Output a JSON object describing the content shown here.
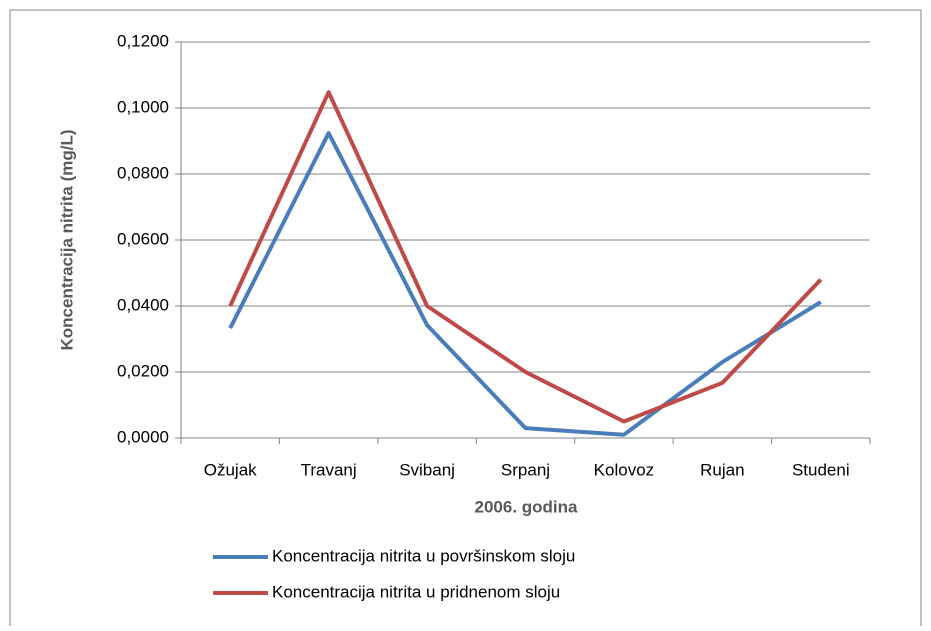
{
  "chart_data": {
    "type": "line",
    "x_label": "2006. godina",
    "y_label": "Koncentracija nitrita (mg/L)",
    "categories": [
      "Ožujak",
      "Travanj",
      "Svibanj",
      "Srpanj",
      "Kolovoz",
      "Rujan",
      "Studeni"
    ],
    "series": [
      {
        "name": "Koncentracija nitrita u površinskom sloju",
        "color": "#4a7ebb",
        "values": [
          0.0333,
          0.0924,
          0.0342,
          0.003,
          0.001,
          0.023,
          0.0412
        ]
      },
      {
        "name": "Koncentracija nitrita u pridnenom sloju",
        "color": "#be4b48",
        "values": [
          0.04,
          0.1048,
          0.04,
          0.02,
          0.005,
          0.0167,
          0.048
        ]
      }
    ],
    "ylim": [
      0,
      0.12
    ],
    "yticks": [
      {
        "value": 0,
        "label": "0,0000"
      },
      {
        "value": 0.02,
        "label": "0,0200"
      },
      {
        "value": 0.04,
        "label": "0,0400"
      },
      {
        "value": 0.06,
        "label": "0,0600"
      },
      {
        "value": 0.08,
        "label": "0,0800"
      },
      {
        "value": 0.1,
        "label": "0,1000"
      },
      {
        "value": 0.12,
        "label": "0,1200"
      }
    ],
    "grid": true,
    "legend": "bottom"
  }
}
